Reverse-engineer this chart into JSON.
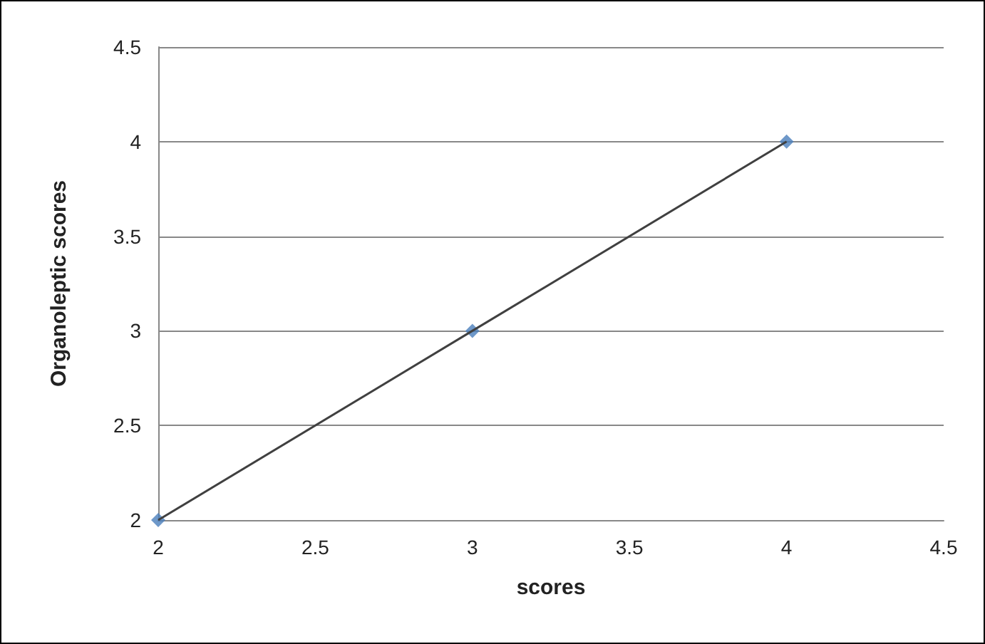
{
  "chart_data": {
    "type": "scatter",
    "xlabel": "scores",
    "ylabel": "Organoleptic scores",
    "x": [
      2,
      3,
      4
    ],
    "series": [
      {
        "type": "line",
        "color": "#404040",
        "values": [
          2,
          3,
          4
        ],
        "marker": "none"
      },
      {
        "color": "#4a7ebb",
        "values": [
          2,
          3,
          4
        ],
        "marker": "diamond"
      }
    ],
    "xlim": [
      2,
      4.5
    ],
    "xticks": [
      2,
      2.5,
      3,
      3.5,
      4,
      4.5
    ],
    "ylim": [
      2,
      4.5
    ],
    "yticks": [
      2,
      2.5,
      3,
      3.5,
      4,
      4.5
    ],
    "grid": "y"
  }
}
